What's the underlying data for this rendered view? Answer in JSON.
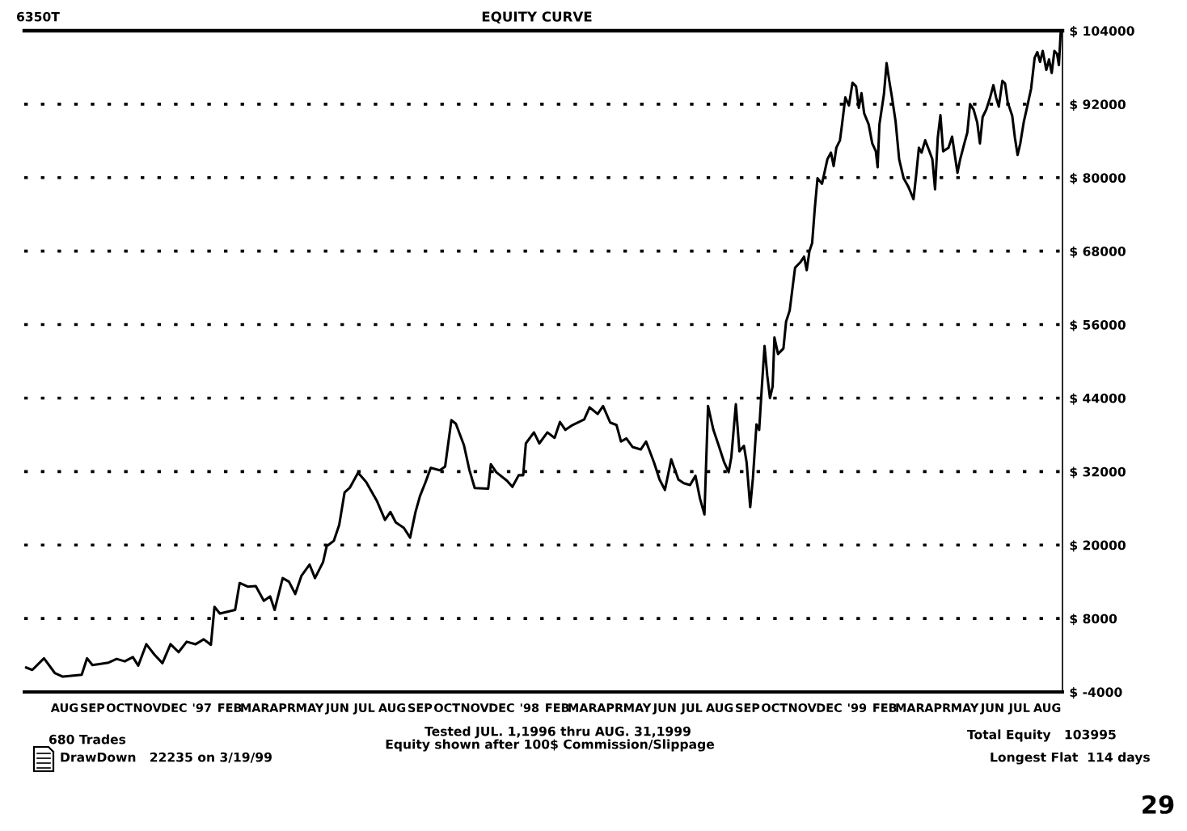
{
  "chart_data": {
    "type": "line",
    "title": "EQUITY CURVE",
    "x": [
      "1996-07-03",
      "1996-07-10",
      "1996-07-23",
      "1996-08-04",
      "1996-08-13",
      "1996-09-03",
      "1996-09-09",
      "1996-09-15",
      "1996-10-03",
      "1996-10-12",
      "1996-10-21",
      "1996-10-30",
      "1996-11-05",
      "1996-11-14",
      "1996-11-23",
      "1996-12-02",
      "1996-12-11",
      "1996-12-20",
      "1996-12-29",
      "1997-01-08",
      "1997-01-17",
      "1997-01-25",
      "1997-01-29",
      "1997-02-04",
      "1997-02-21",
      "1997-02-26",
      "1997-03-07",
      "1997-03-16",
      "1997-03-25",
      "1997-04-01",
      "1997-04-06",
      "1997-04-15",
      "1997-04-22",
      "1997-04-29",
      "1997-05-06",
      "1997-05-15",
      "1997-05-21",
      "1997-05-30",
      "1997-06-03",
      "1997-06-11",
      "1997-06-17",
      "1997-06-23",
      "1997-06-29",
      "1997-07-08",
      "1997-07-17",
      "1997-07-29",
      "1997-08-07",
      "1997-08-13",
      "1997-08-19",
      "1997-08-28",
      "1997-09-04",
      "1997-09-10",
      "1997-09-15",
      "1997-09-21",
      "1997-09-27",
      "1997-10-07",
      "1997-10-13",
      "1997-10-20",
      "1997-10-25",
      "1997-11-03",
      "1997-11-09",
      "1997-11-15",
      "1997-11-30",
      "1997-12-03",
      "1997-12-09",
      "1997-12-21",
      "1997-12-27",
      "1998-01-03",
      "1998-01-08",
      "1998-01-11",
      "1998-01-20",
      "1998-01-26",
      "1998-02-04",
      "1998-02-12",
      "1998-02-18",
      "1998-02-24",
      "1998-03-04",
      "1998-03-17",
      "1998-03-23",
      "1998-04-01",
      "1998-04-07",
      "1998-04-15",
      "1998-04-22",
      "1998-04-27",
      "1998-05-03",
      "1998-05-10",
      "1998-05-19",
      "1998-05-25",
      "1998-06-03",
      "1998-06-09",
      "1998-06-15",
      "1998-06-22",
      "1998-06-30",
      "1998-07-06",
      "1998-07-13",
      "1998-07-19",
      "1998-07-24",
      "1998-07-29",
      "1998-08-02",
      "1998-08-08",
      "1998-08-14",
      "1998-08-20",
      "1998-08-25",
      "1998-08-28",
      "1998-09-02",
      "1998-09-06",
      "1998-09-11",
      "1998-09-14",
      "1998-09-18",
      "1998-09-21",
      "1998-09-25",
      "1998-09-28",
      "1998-10-01",
      "1998-10-04",
      "1998-10-07",
      "1998-10-10",
      "1998-10-13",
      "1998-10-15",
      "1998-10-19",
      "1998-10-25",
      "1998-10-28",
      "1998-11-01",
      "1998-11-04",
      "1998-11-07",
      "1998-11-13",
      "1998-11-17",
      "1998-11-20",
      "1998-11-23",
      "1998-11-26",
      "1998-11-29",
      "1998-12-02",
      "1998-12-07",
      "1998-12-13",
      "1998-12-17",
      "1998-12-20",
      "1998-12-23",
      "1998-12-27",
      "1998-12-29",
      "1999-01-02",
      "1999-01-06",
      "1999-01-10",
      "1999-01-14",
      "1999-01-17",
      "1999-01-20",
      "1999-01-23",
      "1999-01-28",
      "1999-02-01",
      "1999-02-05",
      "1999-02-07",
      "1999-02-09",
      "1999-02-14",
      "1999-02-17",
      "1999-02-20",
      "1999-02-23",
      "1999-02-27",
      "1999-03-03",
      "1999-03-08",
      "1999-03-13",
      "1999-03-19",
      "1999-03-22",
      "1999-03-25",
      "1999-03-28",
      "1999-04-01",
      "1999-04-05",
      "1999-04-09",
      "1999-04-12",
      "1999-04-15",
      "1999-04-18",
      "1999-04-21",
      "1999-04-27",
      "1999-05-01",
      "1999-05-04",
      "1999-05-07",
      "1999-05-10",
      "1999-05-15",
      "1999-05-18",
      "1999-05-21",
      "1999-05-25",
      "1999-05-29",
      "1999-06-01",
      "1999-06-04",
      "1999-06-08",
      "1999-06-12",
      "1999-06-16",
      "1999-06-19",
      "1999-06-22",
      "1999-06-26",
      "1999-06-29",
      "1999-07-02",
      "1999-07-07",
      "1999-07-10",
      "1999-07-13",
      "1999-07-16",
      "1999-07-20",
      "1999-07-24",
      "1999-07-28",
      "1999-08-01",
      "1999-08-04",
      "1999-08-07",
      "1999-08-10",
      "1999-08-14",
      "1999-08-17",
      "1999-08-20",
      "1999-08-23",
      "1999-08-26",
      "1999-08-28",
      "1999-08-30",
      "1999-08-31"
    ],
    "series": [
      {
        "color": "#000000",
        "values": [
          0,
          -400,
          1500,
          -900,
          -1500,
          -1200,
          1500,
          400,
          800,
          1400,
          1000,
          1700,
          300,
          3800,
          2100,
          700,
          3800,
          2500,
          4200,
          3800,
          4600,
          3700,
          9900,
          8800,
          9400,
          13800,
          13200,
          13300,
          10900,
          11600,
          9400,
          14600,
          14000,
          12000,
          15000,
          16800,
          14600,
          17200,
          19800,
          20700,
          23300,
          28600,
          29400,
          31800,
          30300,
          27200,
          24100,
          25400,
          23700,
          22800,
          21200,
          25400,
          28000,
          30200,
          32600,
          32200,
          32800,
          40400,
          39800,
          36300,
          32300,
          29300,
          29200,
          33200,
          31900,
          30500,
          29500,
          31400,
          31400,
          36600,
          38400,
          36600,
          38400,
          37500,
          40100,
          38800,
          39600,
          40500,
          42500,
          41400,
          42700,
          40000,
          39600,
          36900,
          37400,
          36000,
          35600,
          36900,
          33400,
          30700,
          29000,
          34000,
          30700,
          30100,
          29800,
          31300,
          27600,
          25000,
          42700,
          38800,
          36200,
          33500,
          31900,
          34400,
          43000,
          35300,
          36200,
          33500,
          26200,
          30900,
          39700,
          38800,
          45900,
          52500,
          47700,
          44000,
          45900,
          53900,
          51200,
          52100,
          56500,
          58300,
          61800,
          65300,
          66200,
          67100,
          64900,
          68000,
          69300,
          75000,
          79900,
          79000,
          83000,
          84100,
          81900,
          84900,
          86100,
          88300,
          93100,
          91800,
          95500,
          94900,
          91400,
          93800,
          90500,
          88700,
          85600,
          84300,
          81700,
          88700,
          93600,
          98700,
          95800,
          93100,
          89200,
          83000,
          79900,
          78600,
          76500,
          80500,
          84900,
          84100,
          86100,
          84600,
          83000,
          78100,
          86500,
          90200,
          84300,
          84900,
          86700,
          83700,
          80800,
          83000,
          85800,
          87400,
          92000,
          91100,
          89000,
          85600,
          89900,
          91100,
          92900,
          95100,
          93100,
          91600,
          95800,
          95400,
          92300,
          90100,
          86500,
          83700,
          85600,
          89200,
          91800,
          94500,
          99600,
          100500,
          98900,
          100700,
          97600,
          99300,
          97100,
          100700,
          100200,
          98400,
          103700,
          103900
        ]
      }
    ],
    "xlim": [
      "1996-07-01",
      "1999-09-01"
    ],
    "xticks": [
      {
        "value": "1996-08-15",
        "label": "AUG"
      },
      {
        "value": "1996-09-15",
        "label": "SEP"
      },
      {
        "value": "1996-10-15",
        "label": "OCT"
      },
      {
        "value": "1996-11-15",
        "label": "NOV"
      },
      {
        "value": "1996-12-15",
        "label": "DEC"
      },
      {
        "value": "1997-01-15",
        "label": "'97"
      },
      {
        "value": "1997-02-15",
        "label": "FEB"
      },
      {
        "value": "1997-03-15",
        "label": "MAR"
      },
      {
        "value": "1997-04-15",
        "label": "APR"
      },
      {
        "value": "1997-05-15",
        "label": "MAY"
      },
      {
        "value": "1997-06-15",
        "label": "JUN"
      },
      {
        "value": "1997-07-15",
        "label": "JUL"
      },
      {
        "value": "1997-08-15",
        "label": "AUG"
      },
      {
        "value": "1997-09-15",
        "label": "SEP"
      },
      {
        "value": "1997-10-15",
        "label": "OCT"
      },
      {
        "value": "1997-11-15",
        "label": "NOV"
      },
      {
        "value": "1997-12-15",
        "label": "DEC"
      },
      {
        "value": "1998-01-15",
        "label": "'98"
      },
      {
        "value": "1998-02-15",
        "label": "FEB"
      },
      {
        "value": "1998-03-15",
        "label": "MAR"
      },
      {
        "value": "1998-04-15",
        "label": "APR"
      },
      {
        "value": "1998-05-15",
        "label": "MAY"
      },
      {
        "value": "1998-06-15",
        "label": "JUN"
      },
      {
        "value": "1998-07-15",
        "label": "JUL"
      },
      {
        "value": "1998-08-15",
        "label": "AUG"
      },
      {
        "value": "1998-09-15",
        "label": "SEP"
      },
      {
        "value": "1998-10-15",
        "label": "OCT"
      },
      {
        "value": "1998-11-15",
        "label": "NOV"
      },
      {
        "value": "1998-12-15",
        "label": "DEC"
      },
      {
        "value": "1999-01-15",
        "label": "'99"
      },
      {
        "value": "1999-02-15",
        "label": "FEB"
      },
      {
        "value": "1999-03-15",
        "label": "MAR"
      },
      {
        "value": "1999-04-15",
        "label": "APR"
      },
      {
        "value": "1999-05-15",
        "label": "MAY"
      },
      {
        "value": "1999-06-15",
        "label": "JUN"
      },
      {
        "value": "1999-07-15",
        "label": "JUL"
      },
      {
        "value": "1999-08-15",
        "label": "AUG"
      }
    ],
    "ylim": [
      -4000,
      104000
    ],
    "yticks": [
      {
        "value": -4000,
        "label": "$ -4000"
      },
      {
        "value": 8000,
        "label": "$ 8000"
      },
      {
        "value": 20000,
        "label": "$ 20000"
      },
      {
        "value": 32000,
        "label": "$ 32000"
      },
      {
        "value": 44000,
        "label": "$ 44000"
      },
      {
        "value": 56000,
        "label": "$ 56000"
      },
      {
        "value": 68000,
        "label": "$ 68000"
      },
      {
        "value": 80000,
        "label": "$ 80000"
      },
      {
        "value": 92000,
        "label": "$ 92000"
      },
      {
        "value": 104000,
        "label": "$ 104000"
      }
    ],
    "grid": "y",
    "annotations": [
      "6350T",
      "680 Trades",
      "Tested JUL. 1,1996 thru AUG. 31,1999",
      "Equity shown after 100$ Commission/Slippage",
      "Total Equity   103995",
      "Longest Flat  114 days",
      "DrawDown   22235 on 3/19/99",
      "29"
    ]
  }
}
